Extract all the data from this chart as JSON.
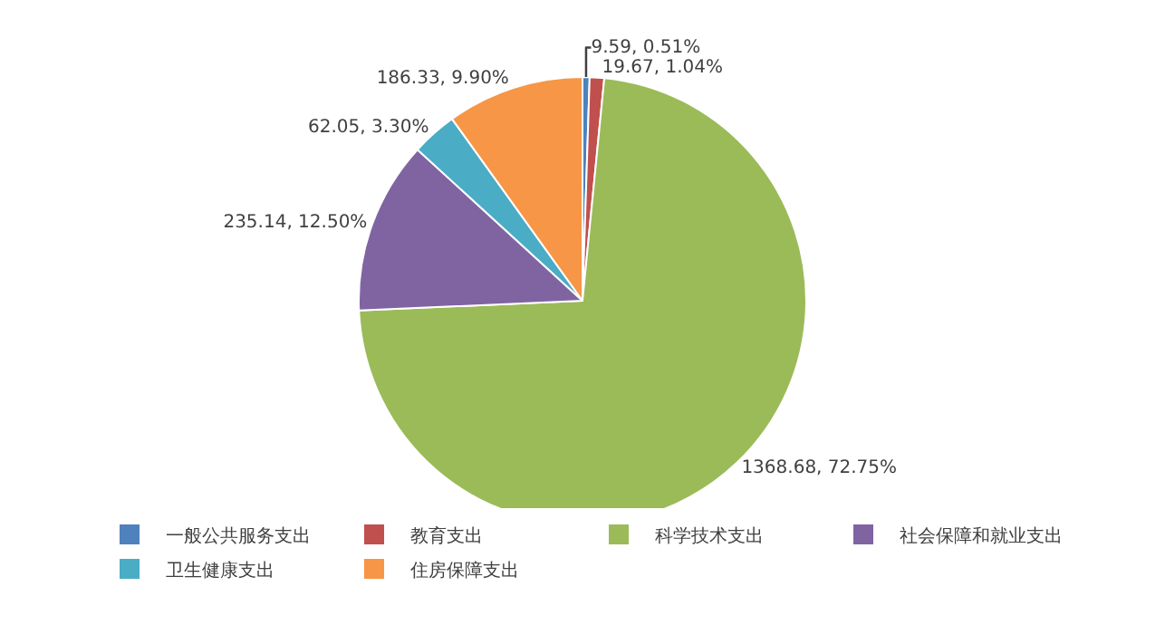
{
  "chart_data": {
    "type": "pie",
    "categories": [
      "一般公共服务支出",
      "教育支出",
      "科学技术支出",
      "社会保障和就业支出",
      "卫生健康支出",
      "住房保障支出"
    ],
    "values": [
      9.59,
      19.67,
      1368.68,
      235.14,
      62.05,
      186.33
    ],
    "value_labels": [
      "9.59, 0.51%",
      "19.67, 1.04%",
      "1368.68, 72.75%",
      "235.14, 12.50%",
      "62.05, 3.30%",
      "186.33, 9.90%"
    ],
    "colors": [
      "#4f81bd",
      "#c0504d",
      "#9bbb59",
      "#8064a2",
      "#4bacc6",
      "#f79646"
    ],
    "legend": "bottom"
  }
}
